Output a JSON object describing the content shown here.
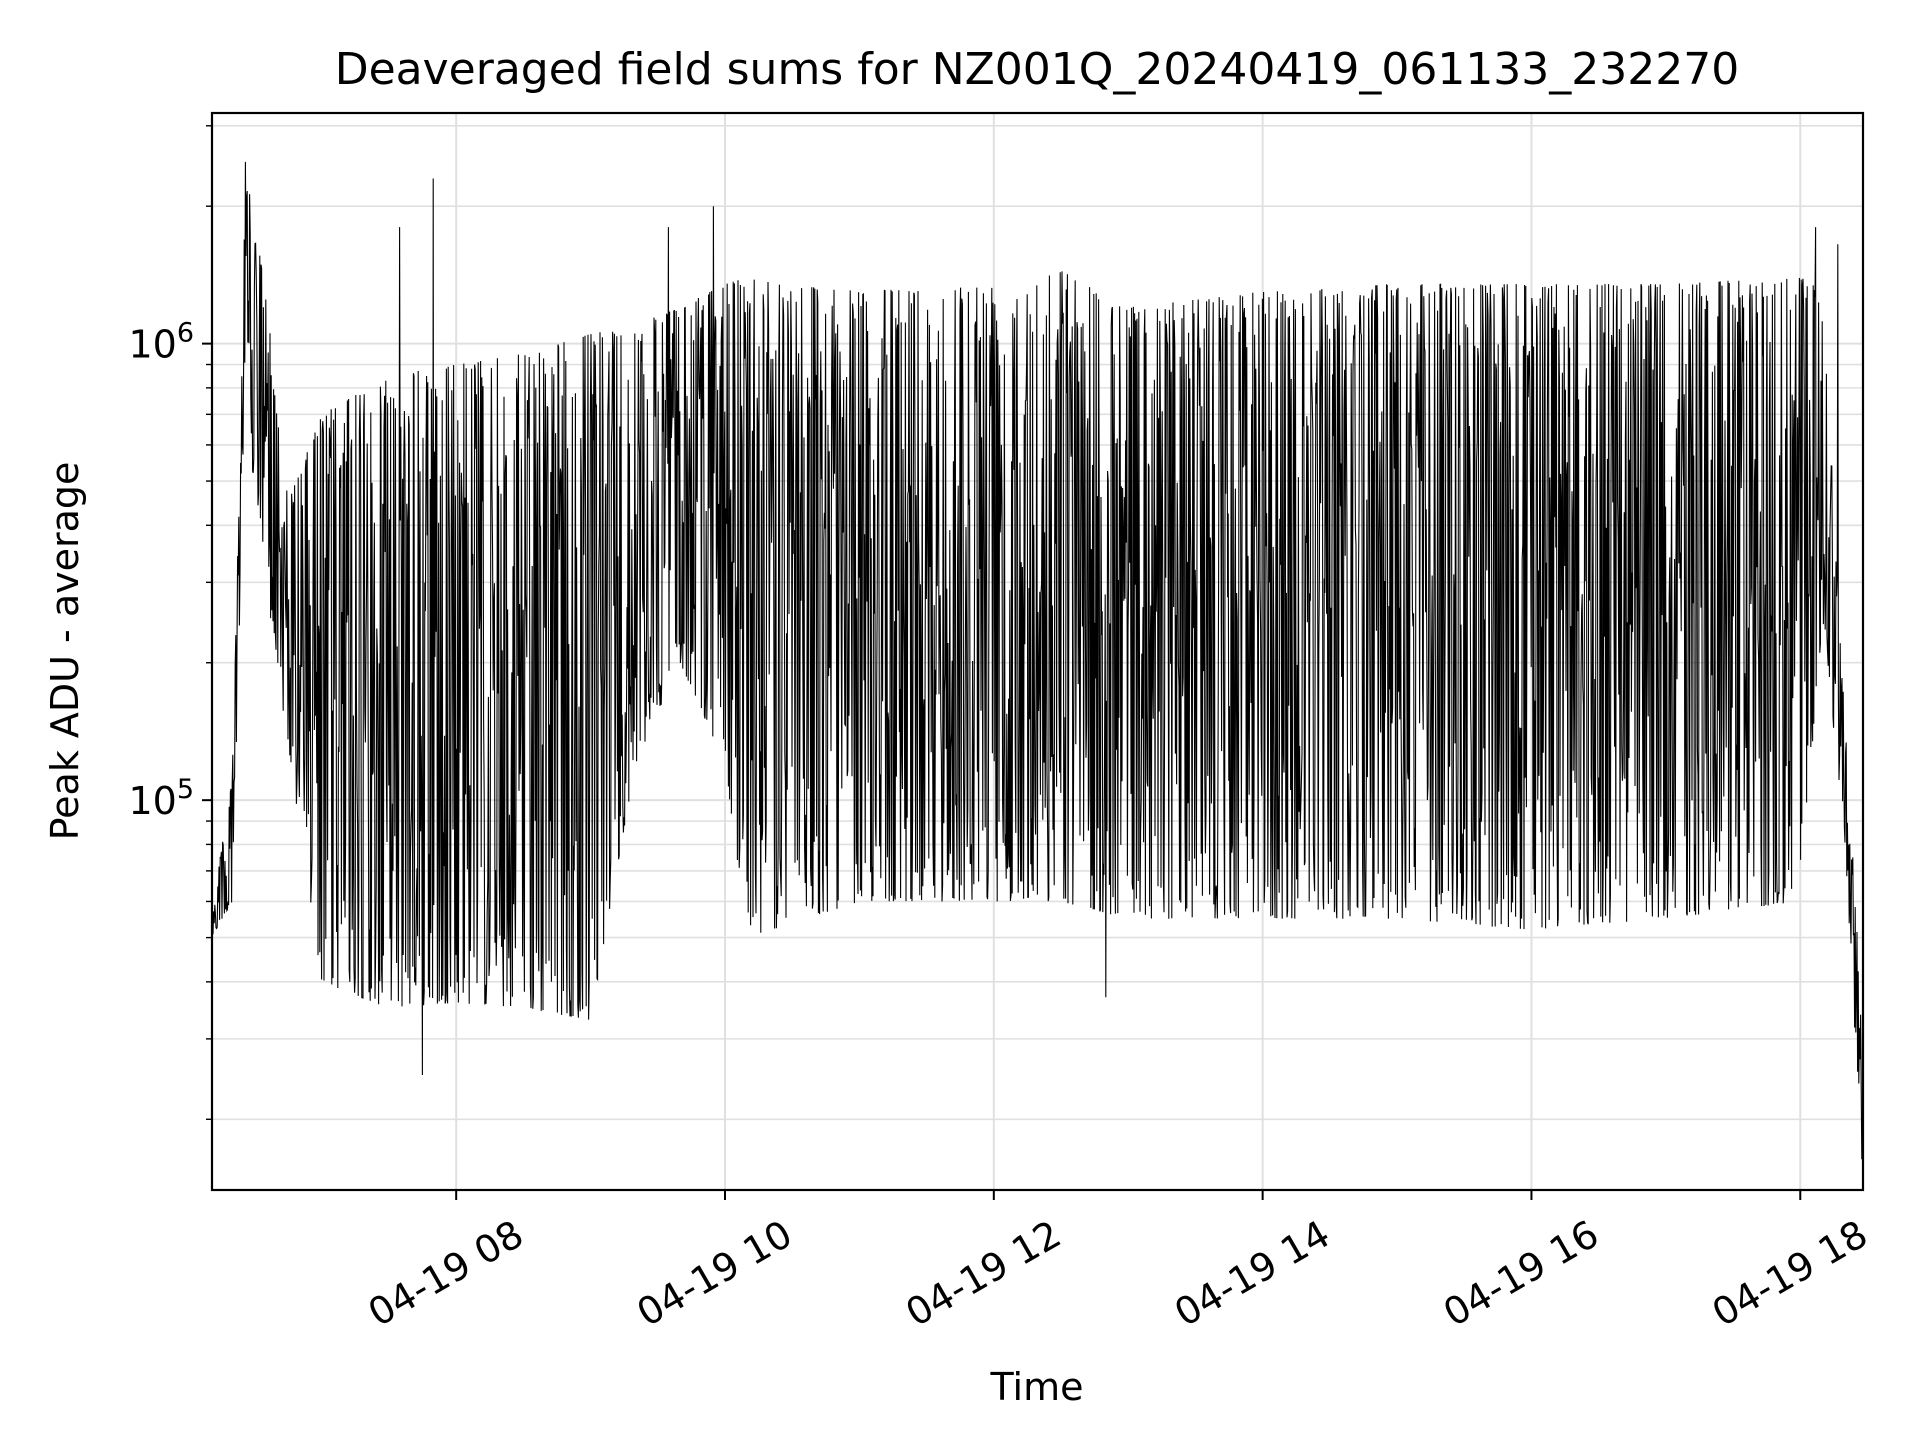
{
  "chart_data": {
    "type": "line",
    "title": "Deaveraged field sums for NZ001Q_20240419_061133_232270",
    "xlabel": "Time",
    "ylabel": "Peak ADU - average",
    "x_axis": {
      "kind": "datetime",
      "range": [
        "2024-04-19 06:11",
        "2024-04-19 18:28"
      ],
      "ticks": [
        {
          "value": "2024-04-19 08:00",
          "label": "04-19 08"
        },
        {
          "value": "2024-04-19 10:00",
          "label": "04-19 10"
        },
        {
          "value": "2024-04-19 12:00",
          "label": "04-19 12"
        },
        {
          "value": "2024-04-19 14:00",
          "label": "04-19 14"
        },
        {
          "value": "2024-04-19 16:00",
          "label": "04-19 16"
        },
        {
          "value": "2024-04-19 18:00",
          "label": "04-19 18"
        }
      ],
      "tick_label_rotation_deg": 30
    },
    "y_axis": {
      "scale": "log",
      "range": [
        14000,
        3200000
      ],
      "ticks": [
        {
          "value": 100000,
          "base": "10",
          "exponent": "5"
        },
        {
          "value": 1000000,
          "base": "10",
          "exponent": "6"
        }
      ]
    },
    "grid": true,
    "line_color": "#000000",
    "grid_color": "#e0e0e0",
    "series": [
      {
        "description_of_shape": "dense high-frequency oscillation; approximate envelope per time",
        "envelope": [
          {
            "t": "2024-04-19 06:11",
            "low": 50000,
            "high": 60000
          },
          {
            "t": "2024-04-19 06:20",
            "low": 60000,
            "high": 110000
          },
          {
            "t": "2024-04-19 06:26",
            "low": 700000,
            "high": 2400000
          },
          {
            "t": "2024-04-19 06:35",
            "low": 300000,
            "high": 1300000
          },
          {
            "t": "2024-04-19 06:45",
            "low": 130000,
            "high": 450000
          },
          {
            "t": "2024-04-19 07:00",
            "low": 40000,
            "high": 700000
          },
          {
            "t": "2024-04-19 07:30",
            "low": 35000,
            "high": 850000
          },
          {
            "t": "2024-04-19 08:00",
            "low": 36000,
            "high": 900000
          },
          {
            "t": "2024-04-19 08:30",
            "low": 35000,
            "high": 950000
          },
          {
            "t": "2024-04-19 09:00",
            "low": 33000,
            "high": 1050000
          },
          {
            "t": "2024-04-19 09:20",
            "low": 120000,
            "high": 1100000
          },
          {
            "t": "2024-04-19 09:40",
            "low": 200000,
            "high": 1200000
          },
          {
            "t": "2024-04-19 10:00",
            "low": 120000,
            "high": 1350000
          },
          {
            "t": "2024-04-19 10:10",
            "low": 50000,
            "high": 1400000
          },
          {
            "t": "2024-04-19 11:00",
            "low": 60000,
            "high": 1300000
          },
          {
            "t": "2024-04-19 12:00",
            "low": 60000,
            "high": 1350000
          },
          {
            "t": "2024-04-19 12:30",
            "low": 60000,
            "high": 1450000
          },
          {
            "t": "2024-04-19 13:00",
            "low": 55000,
            "high": 1200000
          },
          {
            "t": "2024-04-19 14:00",
            "low": 55000,
            "high": 1300000
          },
          {
            "t": "2024-04-19 15:00",
            "low": 55000,
            "high": 1350000
          },
          {
            "t": "2024-04-19 16:00",
            "low": 52000,
            "high": 1350000
          },
          {
            "t": "2024-04-19 17:00",
            "low": 55000,
            "high": 1350000
          },
          {
            "t": "2024-04-19 18:00",
            "low": 60000,
            "high": 1400000
          },
          {
            "t": "2024-04-19 18:10",
            "low": 250000,
            "high": 1300000
          },
          {
            "t": "2024-04-19 18:20",
            "low": 80000,
            "high": 150000
          },
          {
            "t": "2024-04-19 18:28",
            "low": 14000,
            "high": 30000
          }
        ],
        "spikes": [
          {
            "t": "2024-04-19 06:26",
            "value": 2500000
          },
          {
            "t": "2024-04-19 07:35",
            "value": 1800000
          },
          {
            "t": "2024-04-19 07:50",
            "value": 2300000
          },
          {
            "t": "2024-04-19 07:45",
            "value": 25000
          },
          {
            "t": "2024-04-19 09:35",
            "value": 1800000
          },
          {
            "t": "2024-04-19 09:55",
            "value": 2000000
          },
          {
            "t": "2024-04-19 12:50",
            "value": 37000
          },
          {
            "t": "2024-04-19 18:07",
            "value": 1800000
          },
          {
            "t": "2024-04-19 18:17",
            "value": 1650000
          }
        ]
      }
    ]
  }
}
